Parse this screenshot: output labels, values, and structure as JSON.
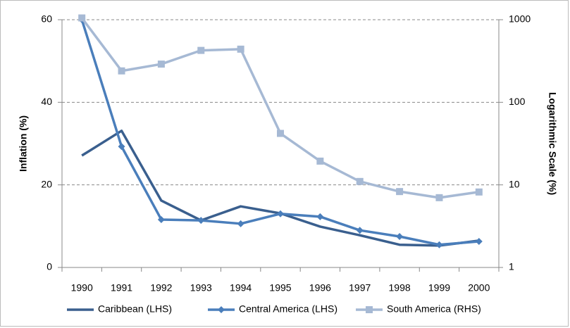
{
  "chart_data": {
    "type": "line",
    "categories": [
      "1990",
      "1991",
      "1992",
      "1993",
      "1994",
      "1995",
      "1996",
      "1997",
      "1998",
      "1999",
      "2000"
    ],
    "ylabel": "Inflation (%)",
    "y2label": "Logarithmic Scale  (%)",
    "ylim": [
      0,
      60
    ],
    "yticks": [
      0,
      20,
      40,
      60
    ],
    "y2lim": [
      1,
      1000
    ],
    "y2ticks": [
      1,
      10,
      100,
      1000
    ],
    "y2log": true,
    "grid": true,
    "legend": "bottom",
    "series": [
      {
        "name": "Caribbean (LHS)",
        "color": "#3a5f8e",
        "marker": "none",
        "values": [
          27.1,
          33.1,
          16.2,
          11.4,
          14.8,
          13.1,
          9.9,
          7.8,
          5.5,
          5.3,
          6.5
        ]
      },
      {
        "name": "Central America (LHS)",
        "color": "#4a7ebb",
        "marker": "diamond",
        "values": [
          60,
          29.3,
          11.6,
          11.4,
          10.6,
          13.0,
          12.3,
          9.0,
          7.5,
          5.5,
          6.3
        ]
      },
      {
        "name": "South America (RHS)",
        "color": "#a6b9d4",
        "marker": "square",
        "axis": "y2",
        "values": [
          1050,
          240,
          290,
          425,
          440,
          42,
          19.4,
          11,
          8.3,
          7,
          8.2
        ]
      }
    ]
  }
}
